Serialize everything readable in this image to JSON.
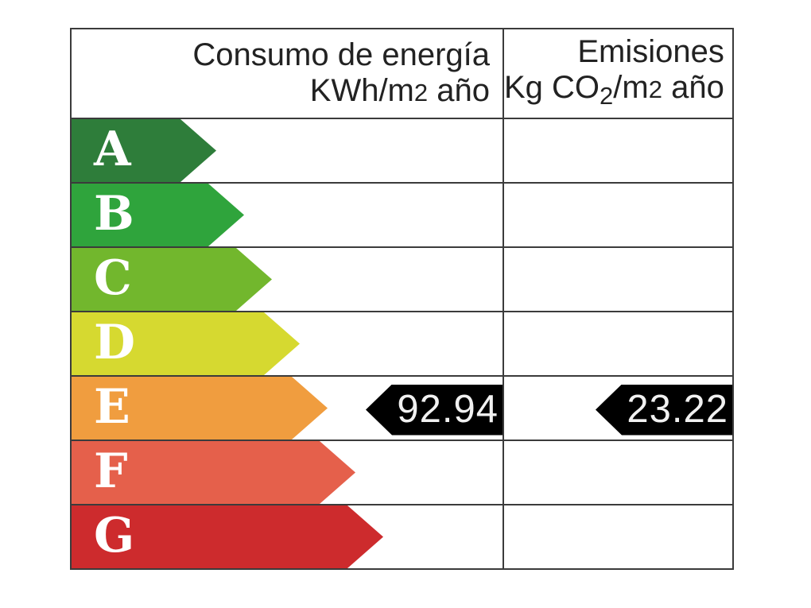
{
  "chart_data": {
    "type": "table",
    "columns": [
      "Consumo de energía KWh/m2 año",
      "Emisiones Kg CO2/m2 año"
    ],
    "rating_scale": [
      "A",
      "B",
      "C",
      "D",
      "E",
      "F",
      "G"
    ],
    "indicated_rating": "E",
    "values": {
      "consumo_kwh_m2_ano": 92.94,
      "emisiones_kg_co2_m2_ano": 23.22
    },
    "layout_hints": {
      "bar_colors_top_to_bottom": [
        "#2e7d3a",
        "#2fa43c",
        "#72b72d",
        "#d6d930",
        "#f09d3f",
        "#e5604b",
        "#cd2b2d"
      ],
      "pointer_style": "black left-pointing arrow with white value text"
    }
  },
  "columns": [
    {
      "title": "Consumo de energía",
      "unit": {
        "pre": "KWh/m",
        "exp": "2",
        "post": " año"
      }
    },
    {
      "title": "Emisiones",
      "unit": {
        "pre": "Kg CO",
        "sub": "2",
        "mid": "/m",
        "exp": "2",
        "post": " año"
      }
    }
  ],
  "ratings": [
    {
      "letter": "A",
      "color": "#2e7d3a"
    },
    {
      "letter": "B",
      "color": "#2fa43c"
    },
    {
      "letter": "C",
      "color": "#72b72d"
    },
    {
      "letter": "D",
      "color": "#d6d930"
    },
    {
      "letter": "E",
      "color": "#f09d3f"
    },
    {
      "letter": "F",
      "color": "#e5604b"
    },
    {
      "letter": "G",
      "color": "#cd2b2d"
    }
  ],
  "pointers": {
    "consumption": {
      "value": "92.94",
      "row": "E",
      "bg": "#000000"
    },
    "emissions": {
      "value": "23.22",
      "row": "E",
      "bg": "#000000"
    }
  },
  "border_color": "#3b3b3b"
}
